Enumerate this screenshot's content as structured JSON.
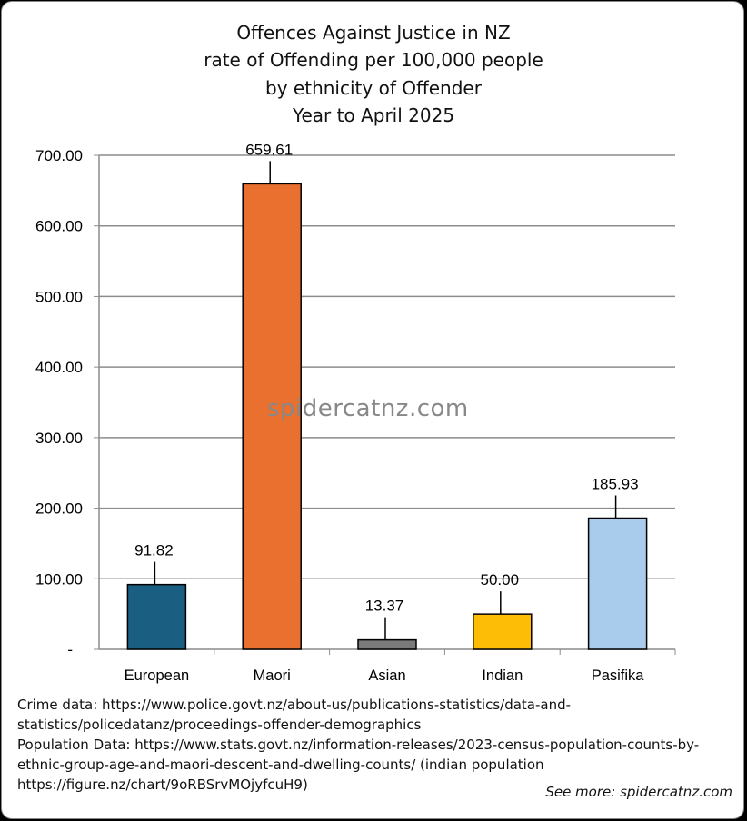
{
  "chart_data": {
    "type": "bar",
    "title": [
      "Offences Against Justice in NZ",
      "rate of Offending per 100,000 people",
      "by ethnicity of Offender",
      "Year to April 2025"
    ],
    "categories": [
      "European",
      "Maori",
      "Asian",
      "Indian",
      "Pasifika"
    ],
    "values": [
      91.82,
      659.61,
      13.37,
      50.0,
      185.93
    ],
    "value_labels": [
      "91.82",
      "659.61",
      "13.37",
      "50.00",
      "185.93"
    ],
    "colors": [
      "#1a5e82",
      "#ea7030",
      "#7a7a7a",
      "#fdbd07",
      "#a9cbec"
    ],
    "ylim": [
      0,
      700
    ],
    "yticks": [
      "-",
      "100.00",
      "200.00",
      "300.00",
      "400.00",
      "500.00",
      "600.00",
      "700.00"
    ],
    "grid": true,
    "legend": "none",
    "xlabel": "",
    "ylabel": ""
  },
  "watermark": "spidercatnz.com",
  "sources": [
    "Crime data: https://www.police.govt.nz/about-us/publications-statistics/data-and-",
    "statistics/policedatanz/proceedings-offender-demographics",
    "Population Data: https://www.stats.govt.nz/information-releases/2023-census-population-counts-by-",
    "ethnic-group-age-and-maori-descent-and-dwelling-counts/ (indian population",
    "https://figure.nz/chart/9oRBSrvMOjyfcuH9)"
  ],
  "see_more": "See more: spidercatnz.com"
}
